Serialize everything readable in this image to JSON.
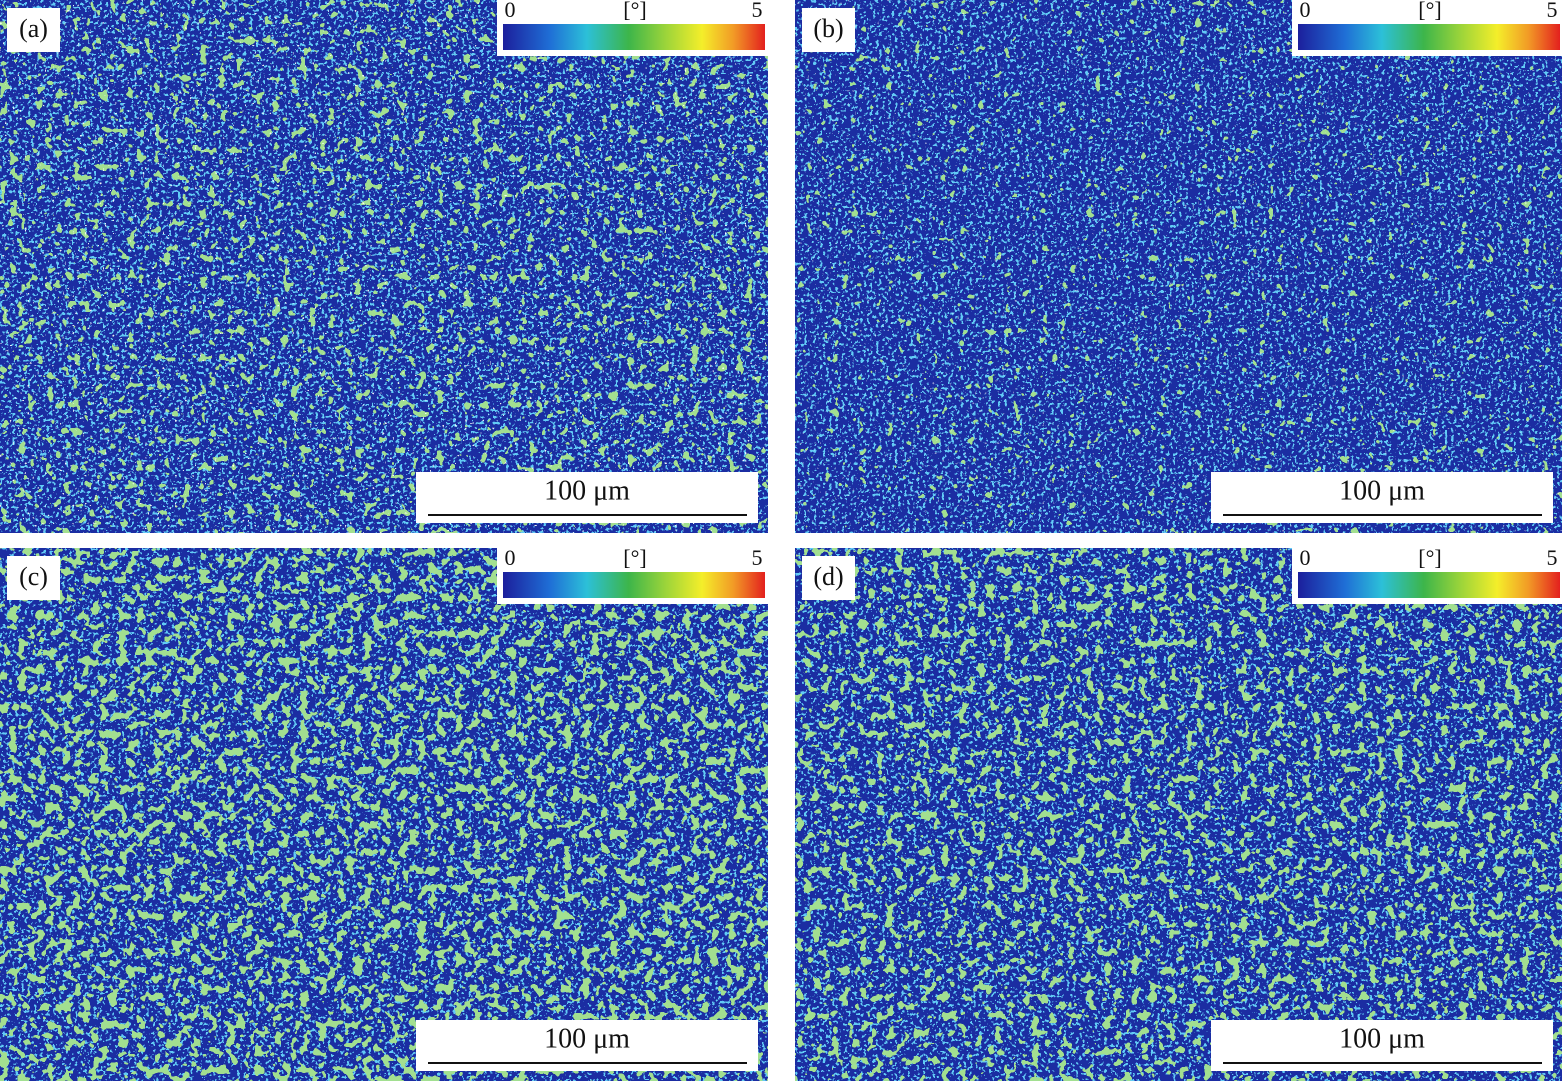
{
  "panels": [
    {
      "label": "(a)",
      "colorbar": {
        "min": 0,
        "unit": "[°]",
        "max": 5
      },
      "scale_bar": "100 μm"
    },
    {
      "label": "(b)",
      "colorbar": {
        "min": 0,
        "unit": "[°]",
        "max": 5
      },
      "scale_bar": "100 μm"
    },
    {
      "label": "(c)",
      "colorbar": {
        "min": 0,
        "unit": "[°]",
        "max": 5
      },
      "scale_bar": "100 μm"
    },
    {
      "label": "(d)",
      "colorbar": {
        "min": 0,
        "unit": "[°]",
        "max": 5
      },
      "scale_bar": "100 μm"
    }
  ]
}
